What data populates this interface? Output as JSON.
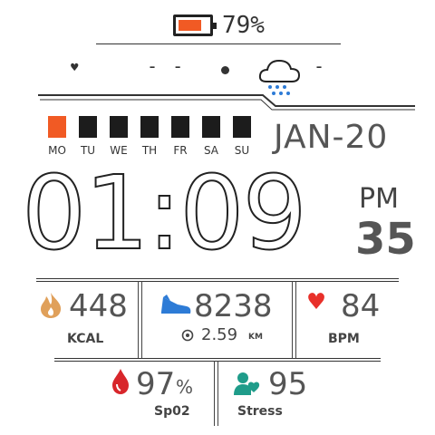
{
  "battery": {
    "percent_label": "79%",
    "level": 0.79
  },
  "status": {
    "left_value": "- -",
    "right_value": "-"
  },
  "weather": {
    "icon": "rain-cloud-icon"
  },
  "week": {
    "days": [
      "MO",
      "TU",
      "WE",
      "TH",
      "FR",
      "SA",
      "SU"
    ],
    "active_index": 0
  },
  "date": "JAN-20",
  "time": {
    "hours": "01",
    "separator": ":",
    "minutes": "09",
    "ampm": "PM",
    "seconds": "35"
  },
  "calories": {
    "value": "448",
    "unit": "KCAL"
  },
  "steps": {
    "value": "8238",
    "distance": "2.59",
    "distance_unit": "KM"
  },
  "heart": {
    "value": "84",
    "unit": "BPM"
  },
  "spo2": {
    "value": "97",
    "percent": "%",
    "label": "Sp02"
  },
  "stress": {
    "value": "95",
    "label": "Stress"
  },
  "colors": {
    "accent": "#f15a24",
    "heart": "#e8302a",
    "steps": "#2d7bd6",
    "flame": "#e0a05a",
    "spo2": "#d8262b",
    "stress": "#1f9c8a"
  }
}
